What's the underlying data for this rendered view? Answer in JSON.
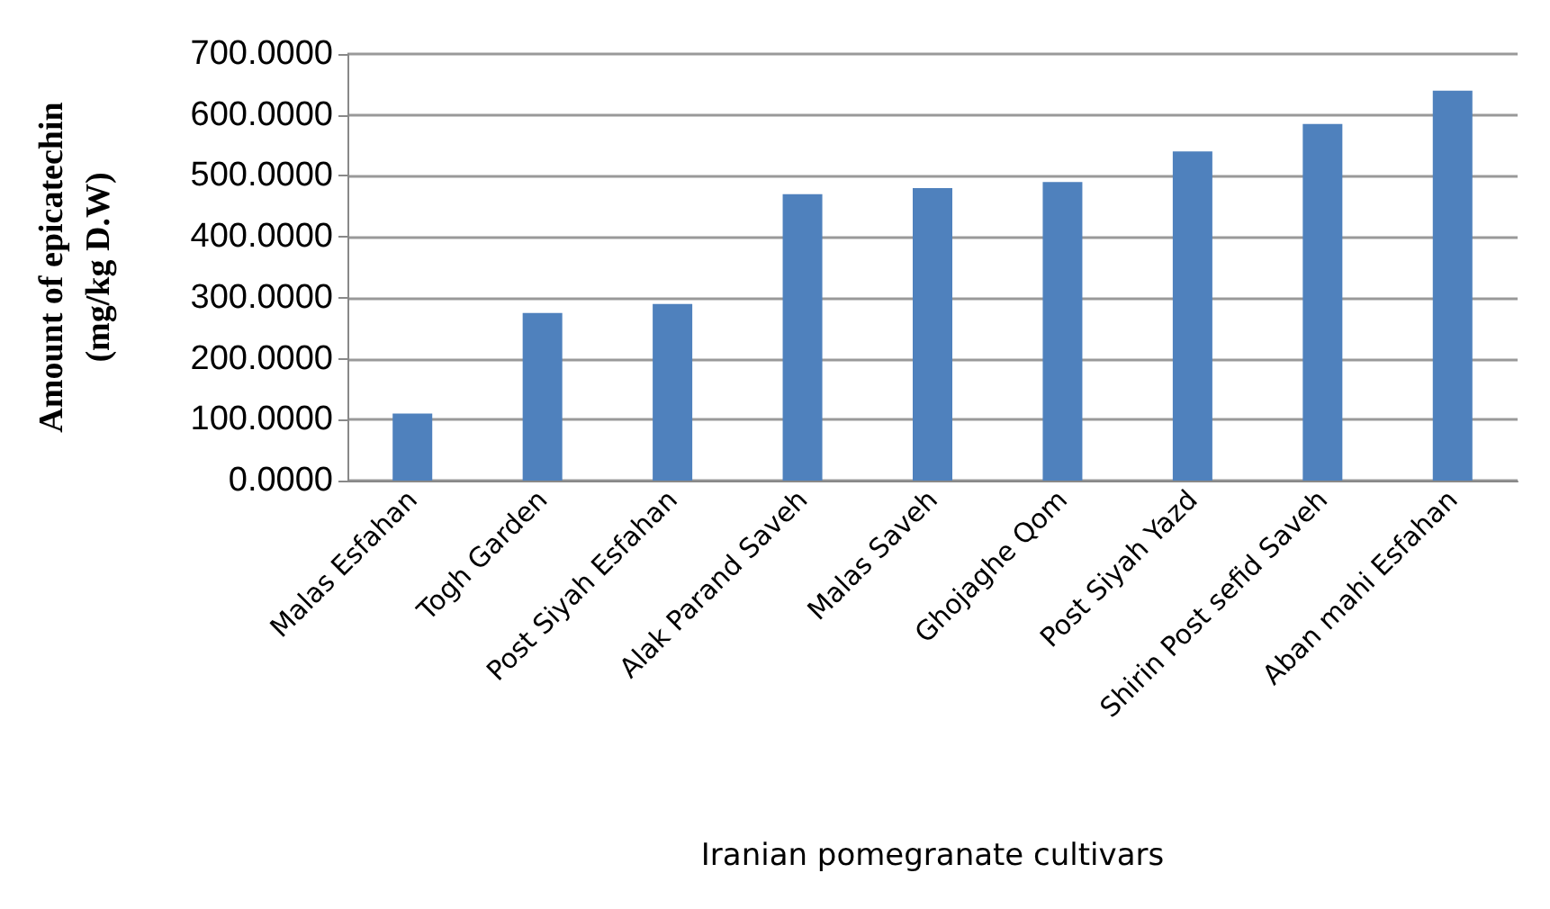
{
  "chart_data": {
    "type": "bar",
    "xlabel": "Iranian pomegranate cultivars",
    "ylabel": "Amount of epicatechin\n(mg/kg D.W)",
    "categories": [
      "Malas Esfahan",
      "Togh Garden",
      "Post Siyah Esfahan",
      "Alak Parand Saveh",
      "Malas Saveh",
      "Ghojaghe Qom",
      "Post Siyah Yazd",
      "Shirin Post sefid Saveh",
      "Aban mahi Esfahan"
    ],
    "values": [
      110,
      275,
      290,
      470,
      480,
      490,
      540,
      585,
      640
    ],
    "color": "#4f81bd",
    "ylim": [
      0,
      700
    ],
    "yticks": [
      {
        "value": 0,
        "label": "0.0000"
      },
      {
        "value": 100,
        "label": "100.0000"
      },
      {
        "value": 200,
        "label": "200.0000"
      },
      {
        "value": 300,
        "label": "300.0000"
      },
      {
        "value": 400,
        "label": "400.0000"
      },
      {
        "value": 500,
        "label": "500.0000"
      },
      {
        "value": 600,
        "label": "600.0000"
      },
      {
        "value": 700,
        "label": "700.0000"
      }
    ],
    "grid": "y"
  }
}
